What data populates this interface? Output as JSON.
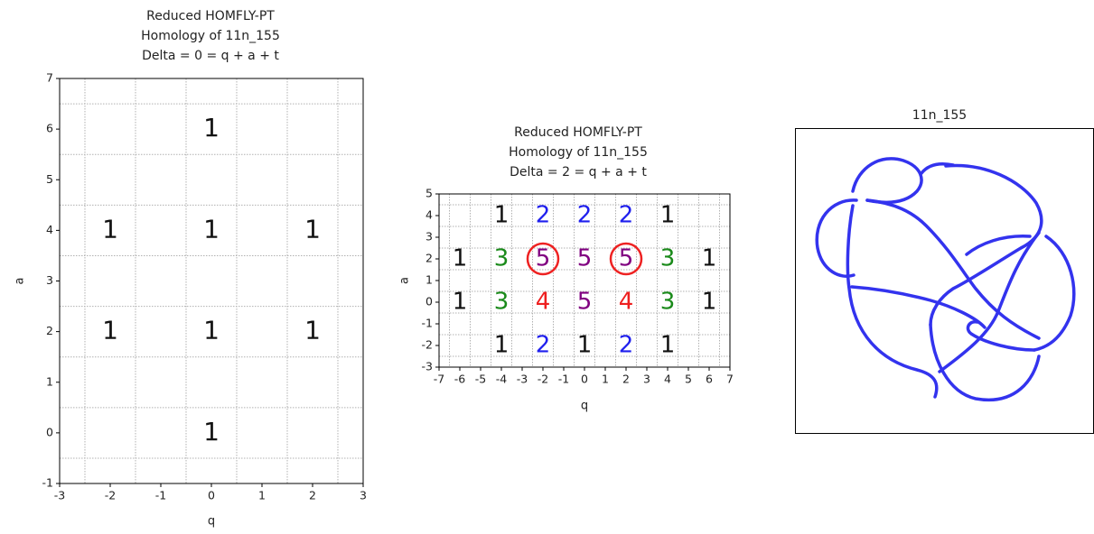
{
  "chart_data": [
    {
      "type": "scatter",
      "title": [
        "Reduced HOMFLY-PT",
        "Homology of 11n_155",
        "Delta = 0 = q + a + t"
      ],
      "x_label": "q",
      "y_label": "a",
      "xlim": [
        -3,
        3
      ],
      "ylim": [
        -1,
        7
      ],
      "xticks": [
        -3,
        -2,
        -1,
        0,
        1,
        2,
        3
      ],
      "yticks": [
        -1,
        0,
        1,
        2,
        3,
        4,
        5,
        6,
        7
      ],
      "grid_x": [
        -2.5,
        -1.5,
        -0.5,
        0.5,
        1.5,
        2.5
      ],
      "grid_y": [
        -0.5,
        0.5,
        1.5,
        2.5,
        3.5,
        4.5,
        5.5,
        6.5
      ],
      "x": [
        0,
        -2,
        0,
        2,
        -2,
        0,
        2,
        0
      ],
      "y": [
        6,
        4,
        4,
        4,
        2,
        2,
        2,
        0
      ],
      "values": [
        1,
        1,
        1,
        1,
        1,
        1,
        1,
        1
      ],
      "colors": [
        "#111111",
        "#111111",
        "#111111",
        "#111111",
        "#111111",
        "#111111",
        "#111111",
        "#111111"
      ],
      "highlights": []
    },
    {
      "type": "scatter",
      "title": [
        "Reduced HOMFLY-PT",
        "Homology of 11n_155",
        "Delta = 2 = q + a + t"
      ],
      "x_label": "q",
      "y_label": "a",
      "xlim": [
        -7,
        7
      ],
      "ylim": [
        -3,
        5
      ],
      "xticks": [
        -7,
        -6,
        -5,
        -4,
        -3,
        -2,
        -1,
        0,
        1,
        2,
        3,
        4,
        5,
        6,
        7
      ],
      "yticks": [
        -3,
        -2,
        -1,
        0,
        1,
        2,
        3,
        4,
        5
      ],
      "grid_x": [
        -6.5,
        -5.5,
        -4.5,
        -3.5,
        -2.5,
        -1.5,
        -0.5,
        0.5,
        1.5,
        2.5,
        3.5,
        4.5,
        5.5,
        6.5
      ],
      "grid_y": [
        -2.5,
        -1.5,
        -0.5,
        0.5,
        1.5,
        2.5,
        3.5,
        4.5
      ],
      "x": [
        -4,
        -2,
        0,
        2,
        4,
        -6,
        -4,
        -2,
        0,
        2,
        4,
        6,
        -6,
        -4,
        -2,
        0,
        2,
        4,
        6,
        -4,
        -2,
        0,
        2,
        4
      ],
      "y": [
        4,
        4,
        4,
        4,
        4,
        2,
        2,
        2,
        2,
        2,
        2,
        2,
        0,
        0,
        0,
        0,
        0,
        0,
        0,
        -2,
        -2,
        -2,
        -2,
        -2
      ],
      "values": [
        1,
        2,
        2,
        2,
        1,
        1,
        3,
        5,
        5,
        5,
        3,
        1,
        1,
        3,
        4,
        5,
        4,
        3,
        1,
        1,
        2,
        1,
        2,
        1
      ],
      "colors": [
        "#111111",
        "#1f1fee",
        "#1f1fee",
        "#1f1fee",
        "#111111",
        "#111111",
        "#1a8a1a",
        "#800080",
        "#800080",
        "#800080",
        "#1a8a1a",
        "#111111",
        "#111111",
        "#1a8a1a",
        "#ee1f1f",
        "#800080",
        "#ee1f1f",
        "#1a8a1a",
        "#111111",
        "#111111",
        "#1f1fee",
        "#111111",
        "#1f1fee",
        "#111111"
      ],
      "highlights": [
        {
          "x": -2,
          "y": 2
        },
        {
          "x": 2,
          "y": 2
        }
      ],
      "highlight_color": "#ee2222"
    }
  ],
  "knot_diagram": {
    "title": "11n_155"
  }
}
